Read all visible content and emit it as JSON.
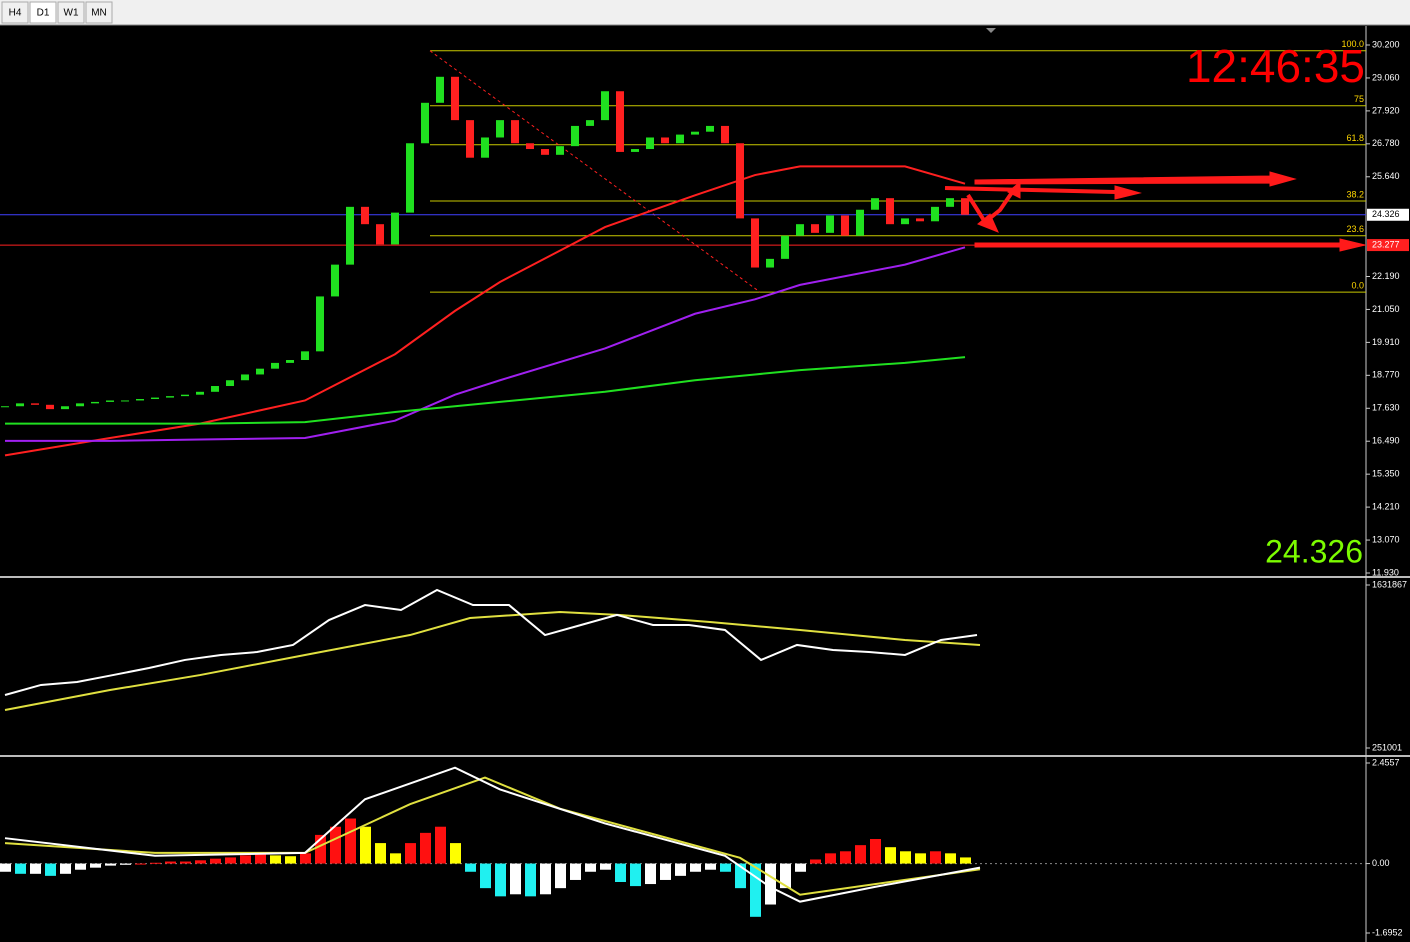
{
  "tabs": [
    "H4",
    "D1",
    "W1",
    "MN"
  ],
  "clock": "12:46:35",
  "price_label": "24.326",
  "main": {
    "ylim": [
      11.93,
      30.2
    ],
    "yticks": [
      {
        "value": 30.2,
        "label": "30.200"
      },
      {
        "value": 29.06,
        "label": "29.060"
      },
      {
        "value": 27.92,
        "label": "27.920"
      },
      {
        "value": 26.78,
        "label": "26.780"
      },
      {
        "value": 25.64,
        "label": "25.640"
      },
      {
        "value": 22.19,
        "label": "22.190"
      },
      {
        "value": 21.05,
        "label": "21.050"
      },
      {
        "value": 19.91,
        "label": "19.910"
      },
      {
        "value": 18.77,
        "label": "18.770"
      },
      {
        "value": 17.63,
        "label": "17.630"
      },
      {
        "value": 16.49,
        "label": "16.490"
      },
      {
        "value": 15.35,
        "label": "15.350"
      },
      {
        "value": 14.21,
        "label": "14.210"
      },
      {
        "value": 13.07,
        "label": "13.070"
      },
      {
        "value": 11.93,
        "label": "11.930"
      }
    ],
    "current_price": {
      "value": 24.326,
      "label": "24.326"
    },
    "line_price": {
      "value": 23.277,
      "label": "23.277"
    },
    "close": [
      17.7,
      17.8,
      17.75,
      17.6,
      17.7,
      17.8,
      17.85,
      17.9,
      17.9,
      17.95,
      18.0,
      18.05,
      18.1,
      18.2,
      18.4,
      18.6,
      18.8,
      19.0,
      19.2,
      19.3,
      19.6,
      21.5,
      22.6,
      24.6,
      24.0,
      23.3,
      24.4,
      26.8,
      28.2,
      29.1,
      27.6,
      26.3,
      27.0,
      27.6,
      26.8,
      26.6,
      26.4,
      26.7,
      27.4,
      27.6,
      28.6,
      26.5,
      26.6,
      27.0,
      26.8,
      27.1,
      27.2,
      27.4,
      26.8,
      24.2,
      22.5,
      22.8,
      23.6,
      24.0,
      23.7,
      24.3,
      23.6,
      24.5,
      24.9,
      24.0,
      24.2,
      24.1,
      24.6,
      24.9,
      24.326
    ],
    "moving_averages": [
      {
        "color": "#ff2020",
        "x": [
          0,
          7,
          13,
          20,
          26,
          30,
          33,
          40,
          46,
          50,
          53,
          60,
          64
        ],
        "values": [
          16.0,
          16.6,
          17.1,
          17.9,
          19.5,
          21.0,
          22.0,
          23.9,
          25.0,
          25.7,
          26.0,
          26.0,
          25.4
        ]
      },
      {
        "color": "#a020f0",
        "x": [
          0,
          7,
          13,
          20,
          26,
          30,
          33,
          40,
          46,
          50,
          53,
          60,
          64
        ],
        "values": [
          16.5,
          16.5,
          16.55,
          16.6,
          17.2,
          18.1,
          18.6,
          19.7,
          20.9,
          21.4,
          21.9,
          22.6,
          23.2
        ]
      },
      {
        "color": "#20e020",
        "x": [
          0,
          7,
          13,
          20,
          26,
          30,
          33,
          40,
          46,
          50,
          53,
          60,
          64
        ],
        "values": [
          17.1,
          17.1,
          17.1,
          17.15,
          17.5,
          17.7,
          17.85,
          18.2,
          18.6,
          18.8,
          18.95,
          19.2,
          19.4
        ]
      }
    ],
    "fib": [
      {
        "value": 30.0,
        "label": "100.0"
      },
      {
        "value": 28.1,
        "label": "75"
      },
      {
        "value": 26.75,
        "label": "61.8"
      },
      {
        "value": 24.8,
        "label": "38.2"
      },
      {
        "value": 23.6,
        "label": "23.6"
      },
      {
        "value": 21.65,
        "label": "0.0"
      }
    ]
  },
  "volume": {
    "ylim": [
      251001,
      1631867
    ],
    "yticks": [
      1631867,
      251001
    ],
    "line": {
      "x": [
        0,
        2.4,
        4.8,
        7.2,
        9.6,
        12,
        14.4,
        16.8,
        19.2,
        21.6,
        24,
        26.4,
        28.8,
        31.2,
        33.6,
        36,
        38.4,
        40.8,
        43.2,
        45.6,
        48,
        50.4,
        52.8,
        55.2,
        57.6,
        60,
        62.4,
        64.8
      ],
      "values": [
        700000,
        785000,
        810000,
        869000,
        929000,
        997000,
        1039000,
        1064000,
        1124000,
        1335000,
        1462000,
        1420000,
        1590000,
        1462000,
        1462000,
        1208000,
        1293000,
        1378000,
        1293000,
        1293000,
        1251000,
        997000,
        1124000,
        1081000,
        1064000,
        1039000,
        1166000,
        1208000
      ]
    },
    "signal": {
      "x": [
        0,
        7,
        13,
        20,
        27,
        31,
        37,
        41,
        47,
        53,
        60,
        65
      ],
      "values": [
        573000,
        742000,
        869000,
        1039000,
        1208000,
        1352000,
        1403000,
        1378000,
        1318000,
        1251000,
        1166000,
        1124000
      ]
    }
  },
  "macd": {
    "ylim": [
      -1.6952,
      2.4557
    ],
    "yticks": [
      2.4557,
      {
        "value": 0,
        "label": "0.00"
      },
      -1.6952
    ],
    "colors": [
      "#ff1010",
      "#ffff00",
      "#20f0f0",
      "#ffffff"
    ],
    "histogram": [
      -0.2,
      -0.25,
      -0.25,
      -0.3,
      -0.25,
      -0.15,
      -0.1,
      -0.05,
      -0.03,
      0.0,
      0.02,
      0.05,
      0.05,
      0.08,
      0.12,
      0.15,
      0.2,
      0.22,
      0.2,
      0.18,
      0.25,
      0.7,
      0.9,
      1.1,
      0.9,
      0.5,
      0.25,
      0.5,
      0.75,
      0.9,
      0.5,
      -0.2,
      -0.6,
      -0.8,
      -0.75,
      -0.8,
      -0.75,
      -0.6,
      -0.4,
      -0.2,
      -0.15,
      -0.45,
      -0.55,
      -0.5,
      -0.4,
      -0.3,
      -0.2,
      -0.15,
      -0.2,
      -0.6,
      -1.3,
      -1.0,
      -0.6,
      -0.2,
      0.1,
      0.25,
      0.3,
      0.45,
      0.6,
      0.4,
      0.3,
      0.25,
      0.3,
      0.25,
      0.15
    ],
    "line": {
      "x": [
        0,
        10,
        20,
        24,
        30,
        33,
        40,
        48,
        51,
        53,
        58,
        65
      ],
      "values": [
        0.62,
        0.19,
        0.26,
        1.57,
        2.34,
        1.81,
        0.98,
        0.19,
        -0.57,
        -0.93,
        -0.57,
        -0.1
      ]
    },
    "signal": {
      "x": [
        0,
        10,
        20,
        27,
        32,
        37,
        43,
        49,
        53,
        59,
        65
      ],
      "values": [
        0.5,
        0.26,
        0.26,
        1.45,
        2.1,
        1.34,
        0.74,
        0.14,
        -0.76,
        -0.45,
        -0.14
      ]
    }
  }
}
